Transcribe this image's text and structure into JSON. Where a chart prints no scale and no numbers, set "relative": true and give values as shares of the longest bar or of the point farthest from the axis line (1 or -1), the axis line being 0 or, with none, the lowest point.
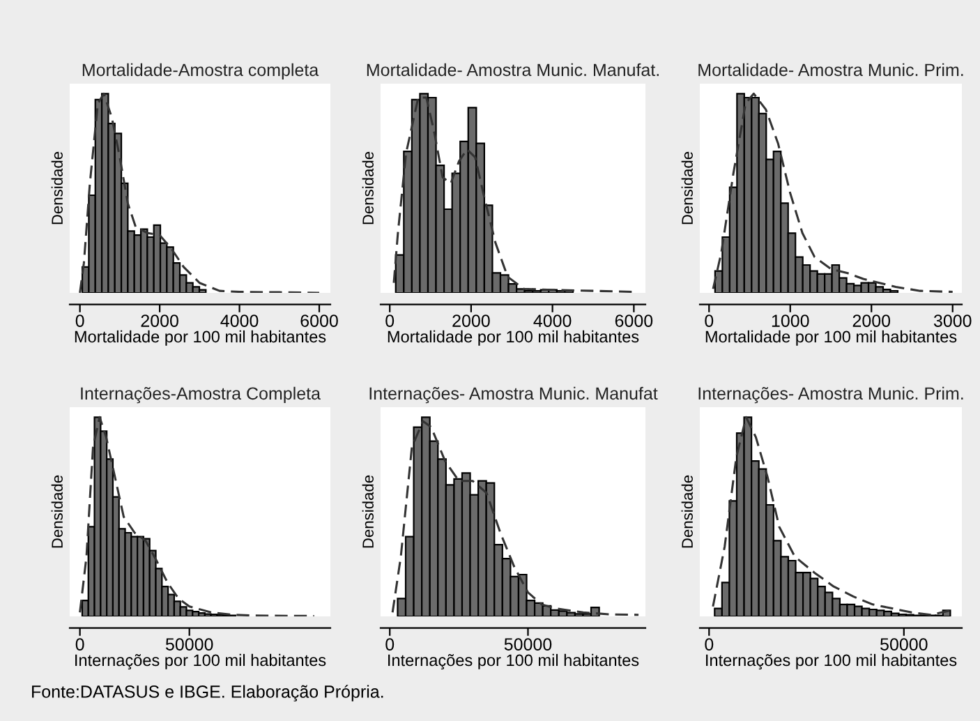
{
  "chart_data": [
    {
      "type": "histogram",
      "title": "Mortalidade-Amostra completa",
      "xlabel": "Mortalidade por 100 mil habitantes",
      "ylabel": "Densidade",
      "relative": true,
      "xlim": [
        -256,
        6279
      ],
      "xticks": [
        0,
        2000,
        4000,
        6000
      ],
      "bins": [
        60,
        223,
        386,
        549,
        712,
        875,
        1038,
        1201,
        1364,
        1527,
        1690,
        1853,
        2016,
        2179,
        2342,
        2505,
        2668,
        2831,
        2994,
        3157
      ],
      "series": [
        {
          "type": "histogram",
          "color": "#6b6b6b",
          "values": [
            0.13,
            0.49,
            0.97,
            1.0,
            0.85,
            0.8,
            0.55,
            0.31,
            0.29,
            0.32,
            0.28,
            0.34,
            0.25,
            0.23,
            0.15,
            0.09,
            0.05,
            0.03,
            0.015
          ]
        },
        {
          "type": "line",
          "line_style": "dashed",
          "color": "#333333",
          "x": [
            0,
            100,
            250,
            450,
            600,
            800,
            1000,
            1200,
            1400,
            1700,
            2000,
            2300,
            2600,
            3000,
            3500,
            4000,
            5000,
            6000
          ],
          "values": [
            0,
            0.15,
            0.55,
            0.95,
            1.0,
            0.88,
            0.68,
            0.45,
            0.33,
            0.3,
            0.29,
            0.22,
            0.13,
            0.05,
            0.01,
            0.005,
            0.003,
            0
          ]
        }
      ]
    },
    {
      "type": "histogram",
      "title": "Mortalidade- Amostra Munic. Manufat.",
      "xlabel": "Mortalidade por 100 mil habitantes",
      "ylabel": "Densidade",
      "relative": true,
      "xlim": [
        -226,
        6285
      ],
      "xticks": [
        0,
        2000,
        4000,
        6000
      ],
      "bins": [
        147,
        345,
        543,
        741,
        939,
        1137,
        1335,
        1533,
        1731,
        1929,
        2127,
        2325,
        2523,
        2721,
        2919,
        3117,
        3315,
        3513,
        3711,
        3909,
        4107,
        4305,
        4503
      ],
      "series": [
        {
          "type": "histogram",
          "color": "#6b6b6b",
          "values": [
            0.19,
            0.71,
            0.97,
            1.0,
            0.98,
            0.64,
            0.42,
            0.6,
            0.76,
            0.93,
            0.75,
            0.44,
            0.1,
            0.09,
            0.045,
            0.02,
            0.01,
            0.01,
            0.015,
            0.015,
            0.01,
            0.01
          ]
        },
        {
          "type": "line",
          "line_style": "dashed",
          "color": "#333333",
          "x": [
            100,
            200,
            400,
            700,
            900,
            1100,
            1300,
            1500,
            1700,
            1900,
            2100,
            2300,
            2600,
            2900,
            3300,
            4000,
            5000,
            6000
          ],
          "values": [
            0.05,
            0.3,
            0.7,
            0.98,
            0.98,
            0.8,
            0.58,
            0.55,
            0.66,
            0.72,
            0.68,
            0.5,
            0.25,
            0.08,
            0.02,
            0.015,
            0.01,
            0.005
          ]
        }
      ]
    },
    {
      "type": "histogram",
      "title": "Mortalidade- Amostra Munic. Prim.",
      "xlabel": "Mortalidade por 100 mil habitantes",
      "ylabel": "Densidade",
      "relative": true,
      "xlim": [
        -114,
        3114
      ],
      "xticks": [
        0,
        1000,
        2000,
        3000
      ],
      "bins": [
        74,
        164,
        254,
        344,
        434,
        524,
        614,
        704,
        794,
        884,
        974,
        1064,
        1154,
        1244,
        1334,
        1424,
        1514,
        1604,
        1694,
        1784,
        1874,
        1964,
        2054,
        2144,
        2234,
        2324
      ],
      "series": [
        {
          "type": "histogram",
          "color": "#6b6b6b",
          "values": [
            0.11,
            0.28,
            0.53,
            1.0,
            0.98,
            0.98,
            0.9,
            0.67,
            0.71,
            0.45,
            0.3,
            0.18,
            0.14,
            0.11,
            0.095,
            0.095,
            0.14,
            0.075,
            0.046,
            0.037,
            0.05,
            0.05,
            0.03,
            0.017,
            0.01
          ]
        },
        {
          "type": "line",
          "line_style": "dashed",
          "color": "#333333",
          "x": [
            50,
            150,
            300,
            450,
            550,
            700,
            850,
            1000,
            1150,
            1300,
            1500,
            1700,
            1900,
            2100,
            2300,
            2600,
            3000
          ],
          "values": [
            0.02,
            0.2,
            0.6,
            0.95,
            1.0,
            0.92,
            0.75,
            0.5,
            0.3,
            0.18,
            0.12,
            0.1,
            0.07,
            0.05,
            0.03,
            0.01,
            0.005
          ]
        }
      ]
    },
    {
      "type": "histogram",
      "title": "Internações-Amostra Completa",
      "xlabel": "Internações por 100 mil habitantes",
      "ylabel": "Densidade",
      "relative": true,
      "xlim": [
        -4660,
        114400
      ],
      "xticks": [
        0,
        50000
      ],
      "bins": [
        1060,
        3860,
        6660,
        9460,
        12260,
        15060,
        17860,
        20660,
        23460,
        26260,
        29060,
        31860,
        34660,
        37460,
        40260,
        43060,
        45860,
        48660,
        51460,
        54260,
        57060,
        59860,
        62660,
        65460,
        68260,
        71060,
        73860,
        76660
      ],
      "series": [
        {
          "type": "histogram",
          "color": "#6b6b6b",
          "values": [
            0.08,
            0.45,
            1.0,
            0.93,
            0.79,
            0.6,
            0.44,
            0.42,
            0.4,
            0.4,
            0.39,
            0.33,
            0.24,
            0.15,
            0.11,
            0.076,
            0.048,
            0.03,
            0.024,
            0.017,
            0.012,
            0.01,
            0.008,
            0.006,
            0.005,
            null,
            null
          ]
        },
        {
          "type": "line",
          "line_style": "dashed",
          "color": "#333333",
          "x": [
            0,
            3000,
            6000,
            9000,
            12000,
            16000,
            20000,
            25000,
            30000,
            35000,
            40000,
            45000,
            50000,
            60000,
            70000,
            80000,
            107000
          ],
          "values": [
            0.02,
            0.3,
            0.85,
            1.0,
            0.9,
            0.7,
            0.5,
            0.42,
            0.38,
            0.28,
            0.17,
            0.09,
            0.05,
            0.02,
            0.008,
            0.004,
            0.002
          ]
        }
      ]
    },
    {
      "type": "histogram",
      "title": "Internações- Amostra Munic. Manufat",
      "xlabel": "Internações por 100 mil habitantes",
      "ylabel": "Densidade",
      "relative": true,
      "xlim": [
        -3333,
        92500
      ],
      "xticks": [
        0,
        50000
      ],
      "bins": [
        2833,
        5750,
        8667,
        11584,
        14501,
        17418,
        20335,
        23252,
        26169,
        29086,
        32003,
        34920,
        37837,
        40754,
        43671,
        46588,
        49505,
        52422,
        55339,
        58256,
        61173,
        64090,
        67007,
        69924,
        72841,
        75758
      ],
      "series": [
        {
          "type": "histogram",
          "color": "#6b6b6b",
          "values": [
            0.09,
            0.4,
            0.95,
            1.0,
            0.88,
            0.79,
            0.66,
            0.69,
            0.72,
            0.61,
            0.68,
            0.67,
            0.36,
            0.29,
            0.2,
            0.21,
            0.08,
            0.067,
            0.053,
            0.032,
            0.027,
            0.019,
            0.013,
            0.013,
            0.045
          ]
        },
        {
          "type": "line",
          "line_style": "dashed",
          "color": "#333333",
          "x": [
            1000,
            4000,
            8000,
            12000,
            15000,
            20000,
            25000,
            30000,
            35000,
            40000,
            45000,
            50000,
            55000,
            60000,
            70000,
            80000,
            90000
          ],
          "values": [
            0.02,
            0.3,
            0.85,
            0.98,
            0.95,
            0.78,
            0.68,
            0.68,
            0.62,
            0.42,
            0.25,
            0.12,
            0.06,
            0.04,
            0.02,
            0.01,
            0.008
          ]
        }
      ]
    },
    {
      "type": "histogram",
      "title": "Internações- Amostra Munic. Prim.",
      "xlabel": "Internações por 100 mil habitantes",
      "ylabel": "Densidade",
      "relative": true,
      "xlim": [
        -2380,
        64880
      ],
      "xticks": [
        0,
        50000
      ],
      "annotations": [
        "Fonte:DATASUS e IBGE. Elaboração Própria."
      ],
      "bins": [
        1430,
        3320,
        5210,
        7100,
        8990,
        10880,
        12770,
        14660,
        16550,
        18440,
        20330,
        22220,
        24110,
        26000,
        27890,
        29780,
        31670,
        33560,
        35450,
        37340,
        39230,
        41120,
        43010,
        44900,
        46790,
        48680,
        50570,
        52460,
        54350,
        56240,
        58130,
        60020,
        61910
      ],
      "series": [
        {
          "type": "histogram",
          "color": "#6b6b6b",
          "values": [
            0.04,
            0.17,
            0.58,
            0.92,
            1.0,
            0.78,
            0.74,
            0.56,
            0.38,
            0.3,
            0.28,
            0.22,
            0.22,
            0.19,
            0.15,
            0.12,
            0.09,
            0.06,
            0.06,
            0.05,
            0.04,
            0.035,
            0.03,
            0.025,
            0.015,
            0.01,
            0.008,
            0.005,
            0.005,
            0.005,
            0.005,
            0.03
          ]
        },
        {
          "type": "line",
          "line_style": "dashed",
          "color": "#333333",
          "x": [
            1000,
            4000,
            7000,
            9500,
            12000,
            15000,
            18000,
            22000,
            27000,
            32000,
            37000,
            42000,
            47000,
            52000,
            57000,
            62000
          ],
          "values": [
            0.05,
            0.35,
            0.8,
            1.0,
            0.9,
            0.7,
            0.45,
            0.3,
            0.22,
            0.15,
            0.1,
            0.06,
            0.04,
            0.02,
            0.008,
            0.03
          ]
        }
      ]
    }
  ]
}
